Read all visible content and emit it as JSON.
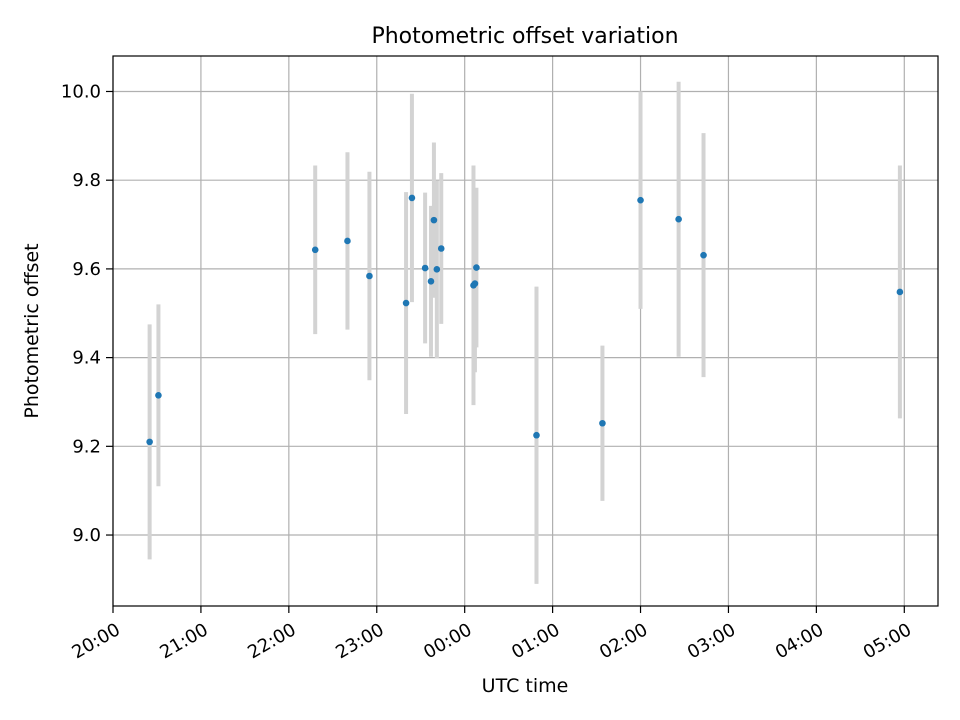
{
  "chart_data": {
    "type": "scatter",
    "title": "Photometric offset variation",
    "xlabel": "UTC time",
    "ylabel": "Photometric offset",
    "x_reference_date": "2024-01-01",
    "xlim": [
      "2024-01-01T20:00",
      "2024-01-02T05:23"
    ],
    "ylim": [
      8.84,
      10.08
    ],
    "grid": true,
    "x_ticks": [
      {
        "x": "2024-01-01T20:00",
        "label": "20:00"
      },
      {
        "x": "2024-01-01T21:00",
        "label": "21:00"
      },
      {
        "x": "2024-01-01T22:00",
        "label": "22:00"
      },
      {
        "x": "2024-01-01T23:00",
        "label": "23:00"
      },
      {
        "x": "2024-01-02T00:00",
        "label": "00:00"
      },
      {
        "x": "2024-01-02T01:00",
        "label": "01:00"
      },
      {
        "x": "2024-01-02T02:00",
        "label": "02:00"
      },
      {
        "x": "2024-01-02T03:00",
        "label": "03:00"
      },
      {
        "x": "2024-01-02T04:00",
        "label": "04:00"
      },
      {
        "x": "2024-01-02T05:00",
        "label": "05:00"
      }
    ],
    "y_ticks": [
      {
        "y": 9.0,
        "label": "9.0"
      },
      {
        "y": 9.2,
        "label": "9.2"
      },
      {
        "y": 9.4,
        "label": "9.4"
      },
      {
        "y": 9.6,
        "label": "9.6"
      },
      {
        "y": 9.8,
        "label": "9.8"
      },
      {
        "y": 10.0,
        "label": "10.0"
      }
    ],
    "point_color": "#1f77b4",
    "errorbar_color": "#d3d3d3",
    "points": [
      {
        "x": "2024-01-01T20:25",
        "y": 9.21,
        "err": 0.265
      },
      {
        "x": "2024-01-01T20:31",
        "y": 9.315,
        "err": 0.205
      },
      {
        "x": "2024-01-01T22:18",
        "y": 9.643,
        "err": 0.19
      },
      {
        "x": "2024-01-01T22:40",
        "y": 9.663,
        "err": 0.2
      },
      {
        "x": "2024-01-01T22:55",
        "y": 9.584,
        "err": 0.235
      },
      {
        "x": "2024-01-01T23:20",
        "y": 9.523,
        "err": 0.25
      },
      {
        "x": "2024-01-01T23:24",
        "y": 9.76,
        "err": 0.235
      },
      {
        "x": "2024-01-01T23:33",
        "y": 9.602,
        "err": 0.17
      },
      {
        "x": "2024-01-01T23:37",
        "y": 9.572,
        "err": 0.17
      },
      {
        "x": "2024-01-01T23:39",
        "y": 9.71,
        "err": 0.175
      },
      {
        "x": "2024-01-01T23:41",
        "y": 9.599,
        "err": 0.2
      },
      {
        "x": "2024-01-01T23:44",
        "y": 9.646,
        "err": 0.17
      },
      {
        "x": "2024-01-02T00:06",
        "y": 9.563,
        "err": 0.27
      },
      {
        "x": "2024-01-02T00:07",
        "y": 9.567,
        "err": 0.2
      },
      {
        "x": "2024-01-02T00:08",
        "y": 9.603,
        "err": 0.18
      },
      {
        "x": "2024-01-02T00:49",
        "y": 9.225,
        "err": 0.335
      },
      {
        "x": "2024-01-02T01:34",
        "y": 9.252,
        "err": 0.175
      },
      {
        "x": "2024-01-02T02:00",
        "y": 9.755,
        "err": 0.245
      },
      {
        "x": "2024-01-02T02:26",
        "y": 9.712,
        "err": 0.31
      },
      {
        "x": "2024-01-02T02:43",
        "y": 9.631,
        "err": 0.275
      },
      {
        "x": "2024-01-02T04:57",
        "y": 9.548,
        "err": 0.285
      }
    ]
  }
}
